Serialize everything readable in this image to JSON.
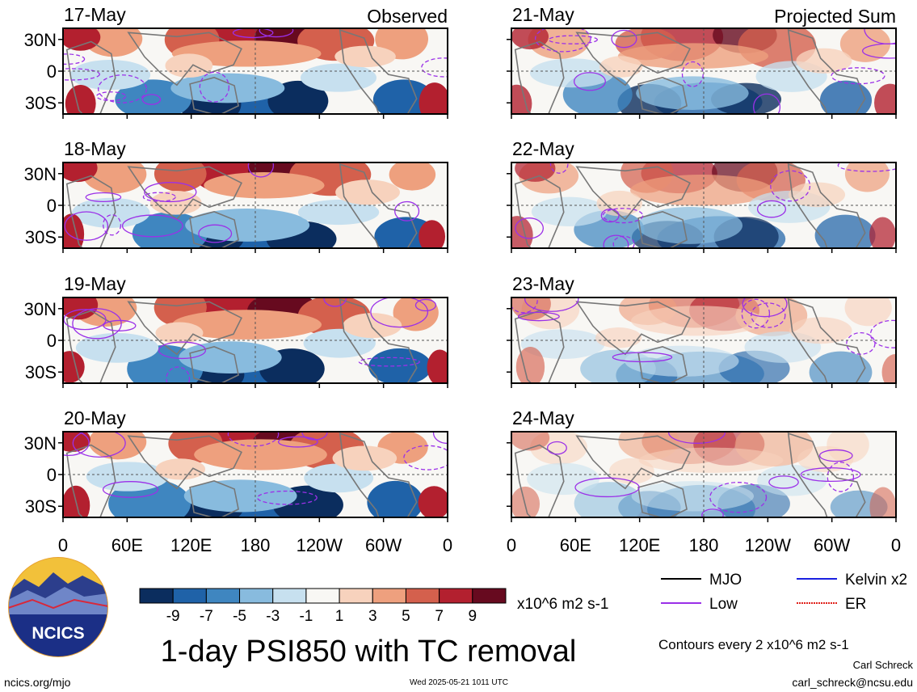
{
  "chart_data": {
    "type": "heatmap",
    "title": "1-day PSI850 with TC removal",
    "columns": [
      {
        "header": "Observed",
        "panels": [
          {
            "date": "17-May"
          },
          {
            "date": "18-May"
          },
          {
            "date": "19-May"
          },
          {
            "date": "20-May"
          }
        ]
      },
      {
        "header": "Projected Sum",
        "panels": [
          {
            "date": "21-May"
          },
          {
            "date": "22-May"
          },
          {
            "date": "23-May"
          },
          {
            "date": "24-May"
          }
        ]
      }
    ],
    "x_ticks": [
      "0",
      "60E",
      "120E",
      "180",
      "120W",
      "60W",
      "0"
    ],
    "y_ticks": [
      "30N",
      "0",
      "30S"
    ],
    "colorbar": {
      "units": "x10^6 m2 s-1",
      "tick_labels": [
        "-9",
        "-7",
        "-5",
        "-3",
        "-1",
        "1",
        "3",
        "5",
        "7",
        "9"
      ],
      "colors": [
        "#0b2d5e",
        "#1f62a8",
        "#3f86c0",
        "#88bbde",
        "#c7e0ef",
        "#f8f7f4",
        "#f7d2bd",
        "#eea07e",
        "#d4604d",
        "#b3202f",
        "#670a1f"
      ]
    },
    "legend": [
      {
        "label": "MJO",
        "color": "#000000"
      },
      {
        "label": "Kelvin x2",
        "color": "#1a20e0"
      },
      {
        "label": "Low",
        "color": "#9b30e8"
      },
      {
        "label": "ER",
        "color": "#e0201a"
      }
    ],
    "contour_note": "Contours every 2 x10^6 m2 s-1"
  },
  "footer": {
    "url": "ncics.org/mjo",
    "timestamp": "Wed 2025-05-21 1011 UTC",
    "author": "Carl Schreck",
    "email": "carl_schreck@ncsu.edu"
  },
  "logo": {
    "text": "NCICS"
  }
}
